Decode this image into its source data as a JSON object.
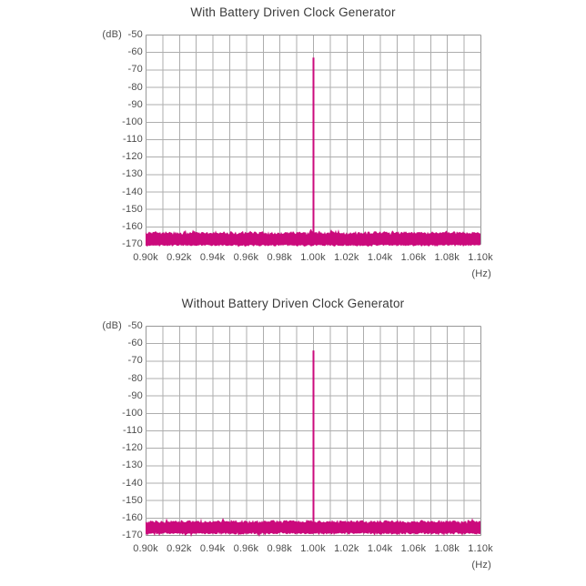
{
  "page": {
    "background": "#ffffff"
  },
  "colors": {
    "accent": "#cb0a7c",
    "grid_line": "#adadad",
    "grid_border": "#989898",
    "axis_text": "#4d4d4d",
    "title_text": "#3a3a3a"
  },
  "charts": [
    {
      "title": "With Battery Driven Clock Generator",
      "y_unit_label": "(dB)",
      "x_unit_label": "(Hz)",
      "y_tick_labels": [
        "-50",
        "-60",
        "-70",
        "-80",
        "-90",
        "-100",
        "-110",
        "-120",
        "-130",
        "-140",
        "-150",
        "-160",
        "-170"
      ],
      "x_tick_labels": [
        "0.90k",
        "0.92k",
        "0.94k",
        "0.96k",
        "0.98k",
        "1.00k",
        "1.02k",
        "1.04k",
        "1.06k",
        "1.08k",
        "1.10k"
      ]
    },
    {
      "title": "Without Battery Driven Clock Generator",
      "y_unit_label": "(dB)",
      "x_unit_label": "(Hz)",
      "y_tick_labels": [
        "-50",
        "-60",
        "-70",
        "-80",
        "-90",
        "-100",
        "-110",
        "-120",
        "-130",
        "-140",
        "-150",
        "-160",
        "-170"
      ],
      "x_tick_labels": [
        "0.90k",
        "0.92k",
        "0.94k",
        "0.96k",
        "0.98k",
        "1.00k",
        "1.02k",
        "1.04k",
        "1.06k",
        "1.08k",
        "1.10k"
      ]
    }
  ],
  "chart_data": [
    {
      "type": "line",
      "title": "With Battery Driven Clock Generator",
      "xlabel": "(Hz)",
      "ylabel": "(dB)",
      "x_ticks": [
        "0.90k",
        "0.92k",
        "0.94k",
        "0.96k",
        "0.98k",
        "1.00k",
        "1.02k",
        "1.04k",
        "1.06k",
        "1.08k",
        "1.10k"
      ],
      "x_minor_divisions_per_tick": 2,
      "ylim": [
        -170,
        -50
      ],
      "y_tick_step": 10,
      "grid": true,
      "legend": null,
      "peak": {
        "x": "1.00k",
        "db": -63.2
      },
      "noise_floor": {
        "band_top_db": -163.6,
        "band_bottom_db": -170.9,
        "top_jitter_db": 1.0,
        "bottom_jitter_db": 0.6,
        "spike_prob": 0.06,
        "spike_db": 1.6,
        "dip_prob": 0.02,
        "dip_db": 1.0
      },
      "seed": 20240901
    },
    {
      "type": "line",
      "title": "Without Battery Driven Clock Generator",
      "xlabel": "(Hz)",
      "ylabel": "(dB)",
      "x_ticks": [
        "0.90k",
        "0.92k",
        "0.94k",
        "0.96k",
        "0.98k",
        "1.00k",
        "1.02k",
        "1.04k",
        "1.06k",
        "1.08k",
        "1.10k"
      ],
      "x_minor_divisions_per_tick": 2,
      "ylim": [
        -170,
        -50
      ],
      "y_tick_step": 10,
      "grid": true,
      "legend": null,
      "peak": {
        "x": "1.00k",
        "db": -64.2
      },
      "noise_floor": {
        "band_top_db": -162.2,
        "band_bottom_db": -169.2,
        "top_jitter_db": 1.0,
        "bottom_jitter_db": 0.7,
        "spike_prob": 0.06,
        "spike_db": 1.6,
        "dip_prob": 0.05,
        "dip_db": 1.6
      },
      "seed": 987654
    }
  ]
}
